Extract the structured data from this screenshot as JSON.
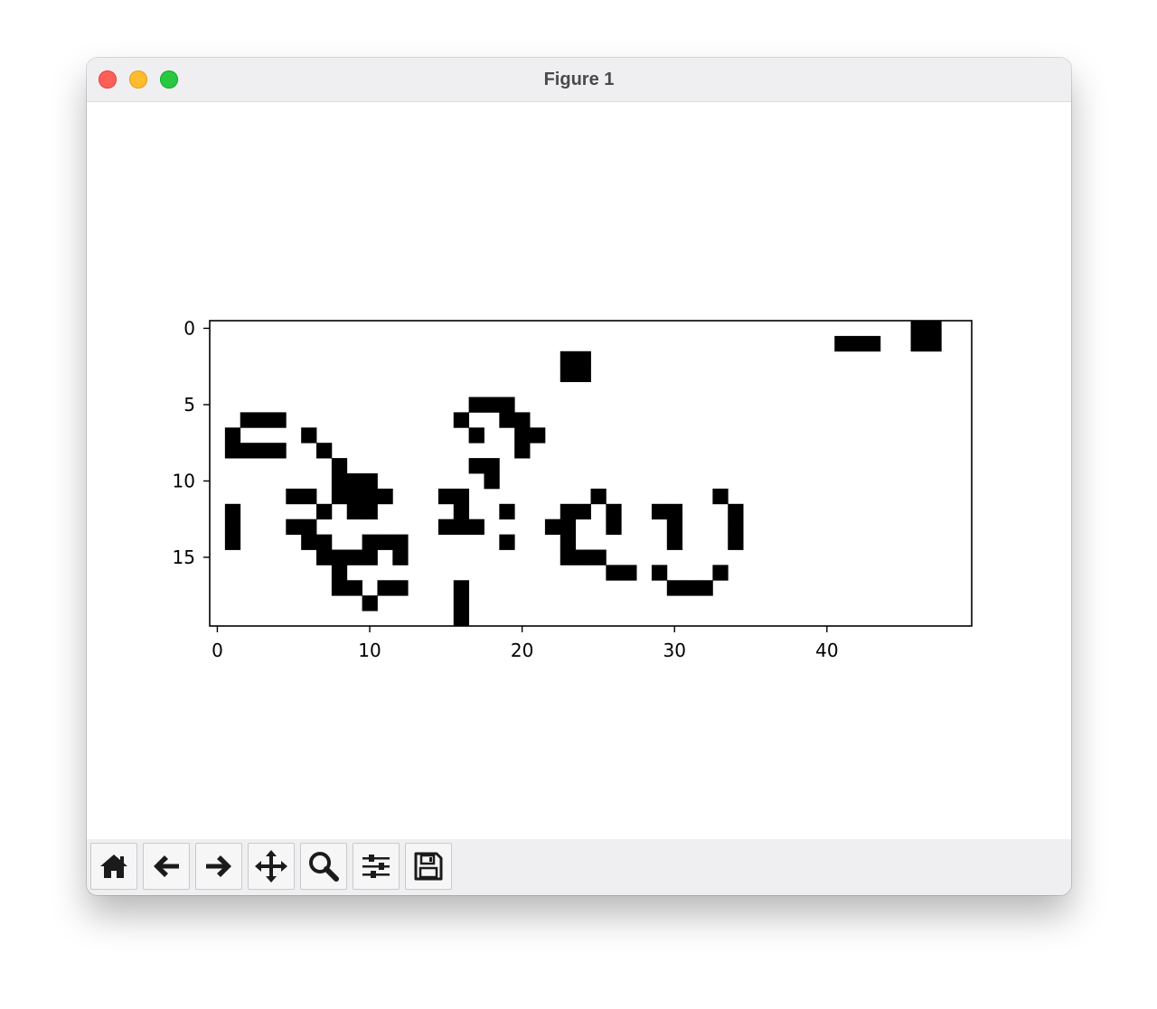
{
  "window": {
    "title": "Figure 1"
  },
  "toolbar": {
    "buttons": [
      {
        "name": "home-button",
        "icon": "home-icon"
      },
      {
        "name": "back-button",
        "icon": "arrow-left-icon"
      },
      {
        "name": "forward-button",
        "icon": "arrow-right-icon"
      },
      {
        "name": "pan-button",
        "icon": "move-icon"
      },
      {
        "name": "zoom-button",
        "icon": "magnifier-icon"
      },
      {
        "name": "configure-subplots-button",
        "icon": "sliders-icon"
      },
      {
        "name": "save-button",
        "icon": "floppy-disk-icon"
      }
    ]
  },
  "chart_data": {
    "type": "heatmap",
    "colormap": "binary",
    "rows": 20,
    "cols": 50,
    "x_ticks": [
      0,
      10,
      20,
      30,
      40
    ],
    "y_ticks": [
      0,
      5,
      10,
      15
    ],
    "cells": [
      [
        0,
        46
      ],
      [
        0,
        47
      ],
      [
        1,
        41
      ],
      [
        1,
        42
      ],
      [
        1,
        43
      ],
      [
        1,
        46
      ],
      [
        1,
        47
      ],
      [
        2,
        23
      ],
      [
        2,
        24
      ],
      [
        3,
        23
      ],
      [
        3,
        24
      ],
      [
        5,
        17
      ],
      [
        5,
        18
      ],
      [
        5,
        19
      ],
      [
        6,
        2
      ],
      [
        6,
        3
      ],
      [
        6,
        4
      ],
      [
        6,
        16
      ],
      [
        6,
        19
      ],
      [
        6,
        20
      ],
      [
        7,
        1
      ],
      [
        7,
        6
      ],
      [
        7,
        17
      ],
      [
        7,
        20
      ],
      [
        7,
        21
      ],
      [
        8,
        1
      ],
      [
        8,
        2
      ],
      [
        8,
        3
      ],
      [
        8,
        4
      ],
      [
        8,
        7
      ],
      [
        8,
        20
      ],
      [
        9,
        8
      ],
      [
        9,
        17
      ],
      [
        9,
        18
      ],
      [
        10,
        8
      ],
      [
        10,
        9
      ],
      [
        10,
        10
      ],
      [
        10,
        18
      ],
      [
        11,
        5
      ],
      [
        11,
        6
      ],
      [
        11,
        8
      ],
      [
        11,
        9
      ],
      [
        11,
        10
      ],
      [
        11,
        11
      ],
      [
        11,
        15
      ],
      [
        11,
        16
      ],
      [
        11,
        25
      ],
      [
        11,
        33
      ],
      [
        12,
        1
      ],
      [
        12,
        7
      ],
      [
        12,
        9
      ],
      [
        12,
        10
      ],
      [
        12,
        16
      ],
      [
        12,
        19
      ],
      [
        12,
        23
      ],
      [
        12,
        24
      ],
      [
        12,
        26
      ],
      [
        12,
        29
      ],
      [
        12,
        30
      ],
      [
        12,
        34
      ],
      [
        13,
        1
      ],
      [
        13,
        5
      ],
      [
        13,
        6
      ],
      [
        13,
        15
      ],
      [
        13,
        16
      ],
      [
        13,
        17
      ],
      [
        13,
        22
      ],
      [
        13,
        23
      ],
      [
        13,
        26
      ],
      [
        13,
        30
      ],
      [
        13,
        34
      ],
      [
        14,
        1
      ],
      [
        14,
        6
      ],
      [
        14,
        7
      ],
      [
        14,
        10
      ],
      [
        14,
        11
      ],
      [
        14,
        12
      ],
      [
        14,
        19
      ],
      [
        14,
        23
      ],
      [
        14,
        30
      ],
      [
        14,
        34
      ],
      [
        15,
        7
      ],
      [
        15,
        8
      ],
      [
        15,
        9
      ],
      [
        15,
        10
      ],
      [
        15,
        12
      ],
      [
        15,
        23
      ],
      [
        15,
        24
      ],
      [
        15,
        25
      ],
      [
        16,
        8
      ],
      [
        16,
        26
      ],
      [
        16,
        27
      ],
      [
        16,
        29
      ],
      [
        16,
        33
      ],
      [
        17,
        8
      ],
      [
        17,
        9
      ],
      [
        17,
        11
      ],
      [
        17,
        12
      ],
      [
        17,
        16
      ],
      [
        17,
        30
      ],
      [
        17,
        31
      ],
      [
        17,
        32
      ],
      [
        18,
        10
      ],
      [
        18,
        16
      ],
      [
        19,
        16
      ]
    ]
  }
}
